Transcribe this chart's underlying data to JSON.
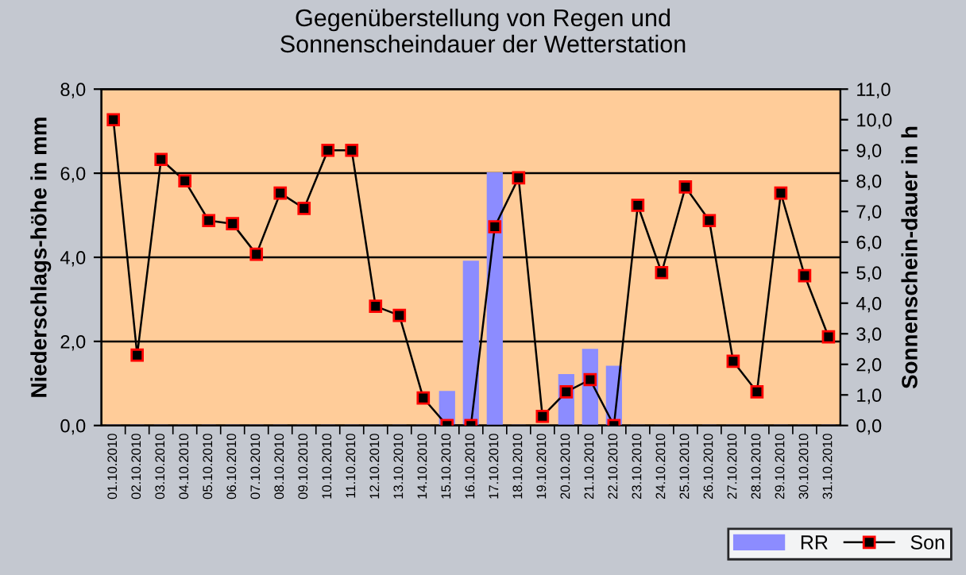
{
  "chart_data": {
    "type": "bar",
    "title": "Gegenüberstellung von Regen und\nSonnenscheindauer der Wetterstation",
    "ylabel": "Niederschlags-höhe in mm",
    "y2label": "Sonnenschein-dauer in h",
    "categories": [
      "01.10.2010",
      "02.10.2010",
      "03.10.2010",
      "04.10.2010",
      "05.10.2010",
      "06.10.2010",
      "07.10.2010",
      "08.10.2010",
      "09.10.2010",
      "10.10.2010",
      "11.10.2010",
      "12.10.2010",
      "13.10.2010",
      "14.10.2010",
      "15.10.2010",
      "16.10.2010",
      "17.10.2010",
      "18.10.2010",
      "19.10.2010",
      "20.10.2010",
      "21.10.2010",
      "22.10.2010",
      "23.10.2010",
      "24.10.2010",
      "25.10.2010",
      "26.10.2010",
      "27.10.2010",
      "28.10.2010",
      "29.10.2010",
      "30.10.2010",
      "31.10.2010"
    ],
    "series": [
      {
        "name": "RR",
        "color": "#8c8cff",
        "values": [
          0,
          0,
          0,
          0,
          0,
          0,
          0,
          0,
          0,
          0,
          0,
          0,
          0,
          0,
          0.8,
          3.9,
          6.0,
          0,
          0,
          1.2,
          1.8,
          1.4,
          0,
          0,
          0,
          0,
          0,
          0,
          0,
          0,
          0
        ]
      },
      {
        "name": "Son",
        "type": "line",
        "axis": "y2",
        "color": "#000000",
        "marker": "square",
        "values": [
          10.0,
          2.3,
          8.7,
          8.0,
          6.7,
          6.6,
          5.6,
          7.6,
          7.1,
          9.0,
          9.0,
          3.9,
          3.6,
          0.9,
          0,
          0,
          6.5,
          8.1,
          0.3,
          1.1,
          1.5,
          0,
          7.2,
          5.0,
          7.8,
          6.7,
          2.1,
          1.1,
          7.6,
          4.9,
          2.9
        ]
      }
    ],
    "ylim": [
      0,
      8
    ],
    "yticks": [
      {
        "value": 0,
        "label": "0,0"
      },
      {
        "value": 2,
        "label": "2,0"
      },
      {
        "value": 4,
        "label": "4,0"
      },
      {
        "value": 6,
        "label": "6,0"
      },
      {
        "value": 8,
        "label": "8,0"
      }
    ],
    "y2lim": [
      0,
      11
    ],
    "y2ticks": [
      {
        "value": 0,
        "label": "0,0"
      },
      {
        "value": 1,
        "label": "1,0"
      },
      {
        "value": 2,
        "label": "2,0"
      },
      {
        "value": 3,
        "label": "3,0"
      },
      {
        "value": 4,
        "label": "4,0"
      },
      {
        "value": 5,
        "label": "5,0"
      },
      {
        "value": 6,
        "label": "6,0"
      },
      {
        "value": 7,
        "label": "7,0"
      },
      {
        "value": 8,
        "label": "8,0"
      },
      {
        "value": 9,
        "label": "9,0"
      },
      {
        "value": 10,
        "label": "10,0"
      },
      {
        "value": 11,
        "label": "11,0"
      }
    ],
    "grid": "y",
    "legend": "bottom right"
  }
}
